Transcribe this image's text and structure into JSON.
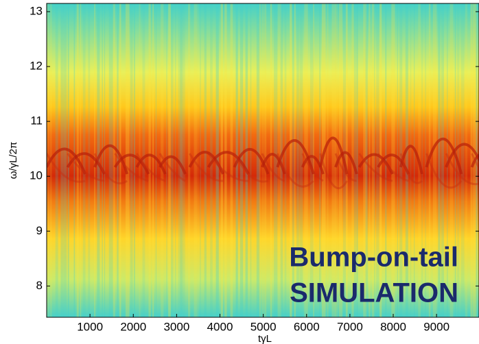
{
  "chart_data": {
    "type": "spectrogram",
    "y_label": "ω/γL/2π",
    "x_label": "tγL",
    "annotation": [
      "Bump-on-tail",
      "SIMULATION"
    ],
    "xlim": [
      0,
      9980
    ],
    "xticks": [
      1000,
      2000,
      3000,
      4000,
      5000,
      6000,
      7000,
      8000,
      9000
    ],
    "ylim": [
      7.43,
      13.15
    ],
    "yticks": [
      8,
      9,
      10,
      11,
      12,
      13
    ]
  }
}
